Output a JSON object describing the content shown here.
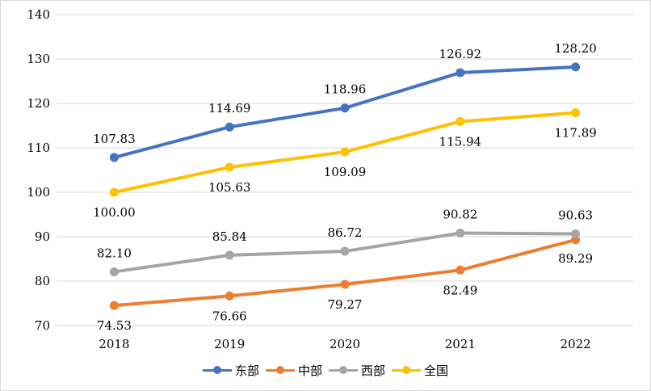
{
  "chart_data": {
    "type": "line",
    "categories": [
      "2018",
      "2019",
      "2020",
      "2021",
      "2022"
    ],
    "ylim": [
      70,
      140
    ],
    "yticks": [
      70,
      80,
      90,
      100,
      110,
      120,
      130,
      140
    ],
    "ytick_labels": [
      "70",
      "80",
      "90",
      "100",
      "110",
      "120",
      "130",
      "140"
    ],
    "grid": true,
    "legend_position": "bottom",
    "series": [
      {
        "name": "东部",
        "color": "#4472C4",
        "values": [
          107.83,
          114.69,
          118.96,
          126.92,
          128.2
        ],
        "labels": [
          "107.83",
          "114.69",
          "118.96",
          "126.92",
          "128.20"
        ]
      },
      {
        "name": "中部",
        "color": "#ED7D31",
        "values": [
          74.53,
          76.66,
          79.27,
          82.49,
          89.29
        ],
        "labels": [
          "74.53",
          "76.66",
          "79.27",
          "82.49",
          "89.29"
        ]
      },
      {
        "name": "西部",
        "color": "#A5A5A5",
        "values": [
          82.1,
          85.84,
          86.72,
          90.82,
          90.63
        ],
        "labels": [
          "82.10",
          "85.84",
          "86.72",
          "90.82",
          "90.63"
        ]
      },
      {
        "name": "全国",
        "color": "#FFC000",
        "values": [
          100.0,
          105.63,
          109.09,
          115.94,
          117.89
        ],
        "labels": [
          "100.00",
          "105.63",
          "109.09",
          "115.94",
          "117.89"
        ]
      }
    ]
  }
}
